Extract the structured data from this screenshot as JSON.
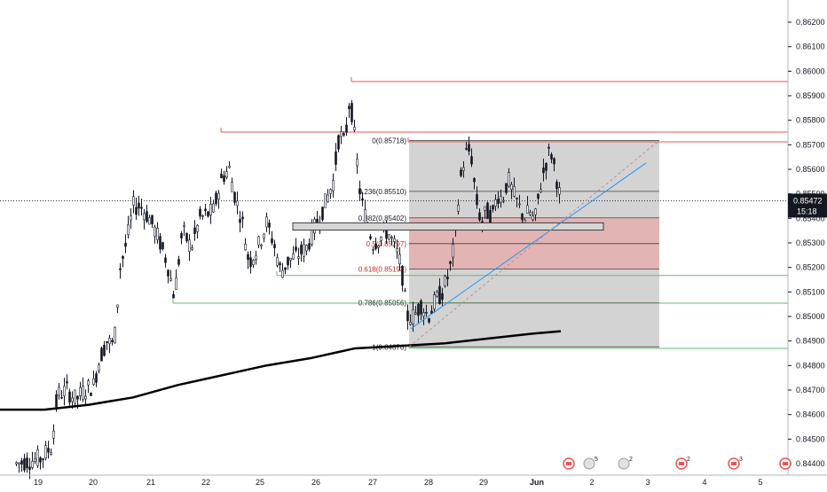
{
  "chart_data": {
    "type": "candlestick",
    "title": "",
    "xlabel": "",
    "ylabel": "",
    "ylim": [
      0.8438,
      0.8627
    ],
    "y_ticks": [
      "0.86200",
      "0.86100",
      "0.86000",
      "0.85900",
      "0.85800",
      "0.85700",
      "0.85600",
      "0.85500",
      "0.85400",
      "0.85300",
      "0.85200",
      "0.85100",
      "0.85000",
      "0.84900",
      "0.84800",
      "0.84700",
      "0.84600",
      "0.84500",
      "0.84400"
    ],
    "x_tick_labels": [
      "19",
      "20",
      "21",
      "22",
      "25",
      "26",
      "27",
      "28",
      "29",
      "Jun",
      "2",
      "3",
      "4",
      "5"
    ],
    "current_price": "0.85472",
    "countdown": "15:18",
    "fib_levels": [
      {
        "label": "0(0.85718)",
        "ratio": 0,
        "price": 0.85718,
        "color": "#131722"
      },
      {
        "label": "0.236(0.85510)",
        "ratio": 0.236,
        "price": 0.8551,
        "color": "#131722"
      },
      {
        "label": "0.382(0.85402)",
        "ratio": 0.382,
        "price": 0.85402,
        "color": "#131722"
      },
      {
        "label": "0.5(0.85297)",
        "ratio": 0.5,
        "price": 0.85297,
        "color": "#c62828"
      },
      {
        "label": "0.618(0.85193)",
        "ratio": 0.618,
        "price": 0.85193,
        "color": "#c62828"
      },
      {
        "label": "0.786(0.85056)",
        "ratio": 0.786,
        "price": 0.85056,
        "color": "#131722"
      },
      {
        "label": "1(0.84876)",
        "ratio": 1,
        "price": 0.84876,
        "color": "#131722"
      }
    ],
    "horizontal_levels": [
      {
        "price": 0.85958,
        "color": "#ef5350"
      },
      {
        "price": 0.85752,
        "color": "#ef5350"
      },
      {
        "price": 0.85712,
        "color": "#ef5350"
      },
      {
        "price": 0.85167,
        "color": "#66bb6a"
      },
      {
        "price": 0.85054,
        "color": "#66bb6a"
      },
      {
        "price": 0.8487,
        "color": "#66bb6a"
      }
    ],
    "moving_average": {
      "color": "#000000",
      "points": [
        [
          0,
          0.8462
        ],
        [
          50,
          0.8462
        ],
        [
          100,
          0.8464
        ],
        [
          150,
          0.8467
        ],
        [
          200,
          0.8472
        ],
        [
          250,
          0.8476
        ],
        [
          300,
          0.848
        ],
        [
          350,
          0.8483
        ],
        [
          400,
          0.8487
        ],
        [
          450,
          0.8488
        ],
        [
          500,
          0.8489
        ],
        [
          550,
          0.8491
        ],
        [
          600,
          0.8493
        ],
        [
          632,
          0.8494
        ]
      ]
    },
    "candles": [],
    "event_icons": [
      {
        "x": 641,
        "badge": ""
      },
      {
        "x": 664,
        "badge": "5"
      },
      {
        "x": 703,
        "badge": "2"
      },
      {
        "x": 768,
        "badge": "2"
      },
      {
        "x": 827,
        "badge": "3"
      },
      {
        "x": 885,
        "badge": ""
      }
    ],
    "colors": {
      "candle": "#131722",
      "fib_box": "#9e9e9e",
      "sell_zone": "#ef9a9a",
      "trend": "#2196f3",
      "dashed": "#ef9a9a"
    }
  }
}
